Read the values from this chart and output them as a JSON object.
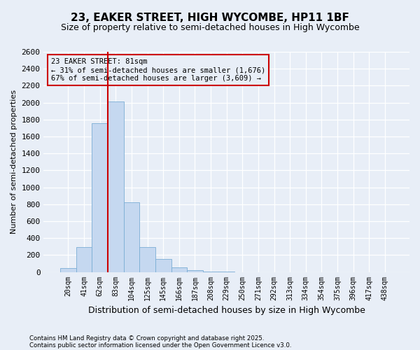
{
  "title": "23, EAKER STREET, HIGH WYCOMBE, HP11 1BF",
  "subtitle": "Size of property relative to semi-detached houses in High Wycombe",
  "xlabel": "Distribution of semi-detached houses by size in High Wycombe",
  "ylabel": "Number of semi-detached properties",
  "footnote1": "Contains HM Land Registry data © Crown copyright and database right 2025.",
  "footnote2": "Contains public sector information licensed under the Open Government Licence v3.0.",
  "bar_labels": [
    "20sqm",
    "41sqm",
    "62sqm",
    "83sqm",
    "104sqm",
    "125sqm",
    "145sqm",
    "166sqm",
    "187sqm",
    "208sqm",
    "229sqm",
    "250sqm",
    "271sqm",
    "292sqm",
    "313sqm",
    "334sqm",
    "354sqm",
    "375sqm",
    "396sqm",
    "417sqm",
    "438sqm"
  ],
  "bar_values": [
    50,
    290,
    1760,
    2010,
    820,
    290,
    155,
    55,
    20,
    8,
    2,
    0,
    0,
    0,
    0,
    0,
    0,
    0,
    0,
    0,
    0
  ],
  "bar_color": "#c5d8f0",
  "bar_edge_color": "#7aadd4",
  "property_label": "23 EAKER STREET: 81sqm",
  "annotation_line1": "← 31% of semi-detached houses are smaller (1,676)",
  "annotation_line2": "67% of semi-detached houses are larger (3,609) →",
  "vline_bin_index": 2,
  "vline_color": "#cc0000",
  "annotation_box_edge_color": "#cc0000",
  "ylim": [
    0,
    2600
  ],
  "yticks": [
    0,
    200,
    400,
    600,
    800,
    1000,
    1200,
    1400,
    1600,
    1800,
    2000,
    2200,
    2400,
    2600
  ],
  "background_color": "#e8eef7",
  "grid_color": "#ffffff",
  "title_fontsize": 11,
  "subtitle_fontsize": 9
}
